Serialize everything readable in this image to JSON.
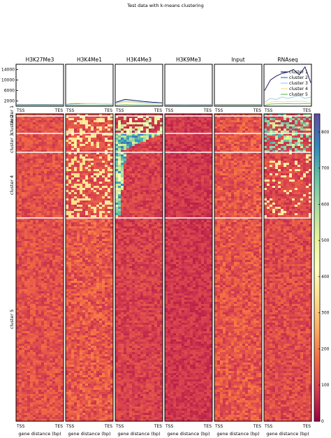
{
  "chart_data": {
    "type": "heatmap",
    "title": "Test data with k-means clustering",
    "samples": [
      "H3K27Me3",
      "H3K4Me1",
      "H3K4Me3",
      "H3K9Me3",
      "Input",
      "RNAseq"
    ],
    "profile_yticks": [
      2000,
      6000,
      10000,
      14000
    ],
    "profile_ylim": [
      0,
      16000
    ],
    "profile_x_ticklabels": [
      "TSS",
      "TES"
    ],
    "xlabel": "gene distance (bp)",
    "legend": {
      "placement": "top-right of RNAseq profile",
      "entries": [
        "cluster 1",
        "cluster 2",
        "cluster 3",
        "cluster 4",
        "cluster 5"
      ]
    },
    "clusters": [
      {
        "name": "cluster 1",
        "color": "#1a1a6e",
        "relative_size": 0.03
      },
      {
        "name": "cluster 2",
        "color": "#3a7ab8",
        "relative_size": 0.0
      },
      {
        "name": "cluster 3",
        "color": "#9ecfe8",
        "relative_size": 0.06
      },
      {
        "name": "cluster 4",
        "color": "#f5e08a",
        "relative_size": 0.21
      },
      {
        "name": "cluster 5",
        "color": "#6abf6a",
        "relative_size": 0.7
      }
    ],
    "profiles": {
      "H3K27Me3": {
        "cluster 1": [
          600,
          620,
          640,
          630,
          610,
          600
        ],
        "cluster 3": [
          500,
          520,
          540,
          530,
          510,
          500
        ],
        "cluster 4": [
          400,
          420,
          410,
          400,
          400,
          410
        ],
        "cluster 5": [
          300,
          310,
          320,
          310,
          300,
          300
        ]
      },
      "H3K4Me1": {
        "cluster 1": [
          700,
          900,
          1000,
          950,
          900,
          800
        ],
        "cluster 3": [
          600,
          800,
          900,
          850,
          800,
          700
        ],
        "cluster 4": [
          900,
          1200,
          1100,
          1000,
          950,
          900
        ],
        "cluster 5": [
          300,
          350,
          340,
          330,
          320,
          310
        ]
      },
      "H3K4Me3": {
        "cluster 1": [
          1500,
          2600,
          2200,
          1800,
          1500,
          1300
        ],
        "cluster 3": [
          1200,
          2000,
          1700,
          1400,
          1200,
          1100
        ],
        "cluster 4": [
          900,
          1600,
          1300,
          1100,
          1000,
          900
        ],
        "cluster 5": [
          400,
          600,
          500,
          450,
          420,
          400
        ]
      },
      "H3K9Me3": {
        "cluster 1": [
          500,
          510,
          520,
          510,
          500,
          500
        ],
        "cluster 3": [
          400,
          410,
          420,
          410,
          400,
          400
        ],
        "cluster 4": [
          350,
          360,
          355,
          350,
          350,
          350
        ],
        "cluster 5": [
          300,
          305,
          310,
          305,
          300,
          300
        ]
      },
      "Input": {
        "cluster 1": [
          600,
          610,
          620,
          610,
          600,
          600
        ],
        "cluster 3": [
          500,
          510,
          520,
          510,
          500,
          500
        ],
        "cluster 4": [
          450,
          460,
          455,
          450,
          450,
          450
        ],
        "cluster 5": [
          350,
          360,
          355,
          350,
          350,
          350
        ]
      },
      "RNAseq": {
        "cluster 1": [
          6000,
          10000,
          11500,
          12500,
          13000,
          14000,
          12000,
          15000,
          9000
        ],
        "cluster 3": [
          1500,
          3000,
          2500,
          3500,
          3000,
          3500,
          4000,
          3000,
          3500
        ],
        "cluster 4": [
          800,
          1500,
          1800,
          1600,
          1700,
          1800,
          1900,
          1700,
          1500
        ],
        "cluster 5": [
          300,
          800,
          900,
          900,
          950,
          900,
          900,
          1000,
          900
        ]
      }
    },
    "heatmap_xticklabels": [
      "TSS",
      "TES"
    ],
    "colorbar": {
      "colormap": "Spectral",
      "ticks": [
        0,
        100,
        200,
        300,
        400,
        500,
        600,
        700,
        800
      ],
      "range": [
        0,
        850
      ]
    }
  }
}
